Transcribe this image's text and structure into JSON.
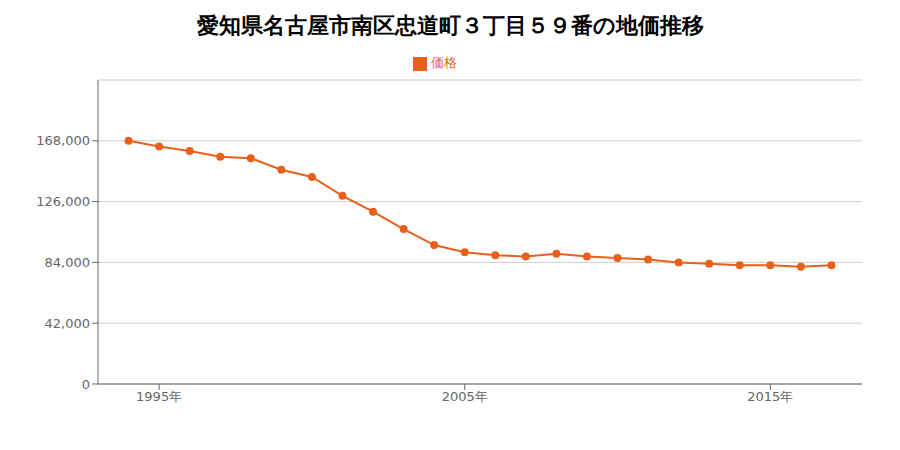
{
  "chart_data": {
    "type": "line",
    "title": "愛知県名古屋市南区忠道町３丁目５９番の地価推移",
    "x": [
      1994,
      1995,
      1996,
      1997,
      1998,
      1999,
      2000,
      2001,
      2002,
      2003,
      2004,
      2005,
      2006,
      2007,
      2008,
      2009,
      2010,
      2011,
      2012,
      2013,
      2014,
      2015,
      2016,
      2017
    ],
    "series": [
      {
        "name": "価格",
        "color": "#e8601c",
        "values": [
          168000,
          164000,
          161000,
          157000,
          156000,
          148000,
          143000,
          130000,
          119000,
          107000,
          96000,
          91000,
          89000,
          88000,
          90000,
          88000,
          87000,
          86000,
          84000,
          83000,
          82000,
          82000,
          81000,
          82000
        ]
      }
    ],
    "xlim": [
      1993,
      2018
    ],
    "xticks": [
      {
        "value": 1995,
        "label": "1995年"
      },
      {
        "value": 2005,
        "label": "2005年"
      },
      {
        "value": 2015,
        "label": "2015年"
      }
    ],
    "ylim": [
      0,
      210000
    ],
    "yticks": [
      0,
      {
        "value": 42000,
        "label": "42,000"
      },
      {
        "value": 84000,
        "label": "84,000"
      },
      {
        "value": 126000,
        "label": "126,000"
      },
      {
        "value": 168000,
        "label": "168,000"
      }
    ],
    "grid": true,
    "legend": "top",
    "marker": "circle"
  }
}
